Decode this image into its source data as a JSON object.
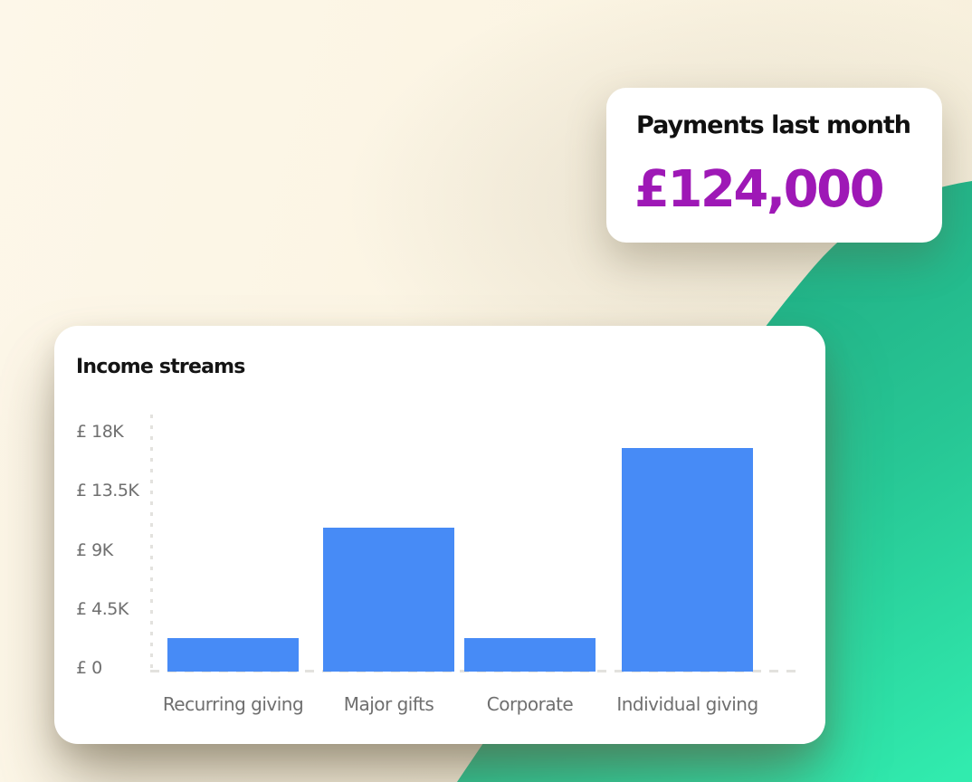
{
  "payments_card": {
    "title": "Payments last month",
    "amount": "£124,000"
  },
  "chart_card": {
    "title": "Income streams"
  },
  "chart_data": {
    "type": "bar",
    "title": "Income streams",
    "categories": [
      "Recurring giving",
      "Major gifts",
      "Corporate",
      "Individual giving"
    ],
    "values": [
      2500,
      10800,
      2500,
      16800
    ],
    "currency_prefix": "£",
    "ytick_labels": [
      "£ 18K",
      "£ 13.5K",
      "£ 9K",
      "£ 4.5K",
      "£ 0"
    ],
    "ytick_values": [
      18000,
      13500,
      9000,
      4500,
      0
    ],
    "ylim": [
      0,
      18000
    ],
    "xlabel": "",
    "ylabel": "",
    "grid": false,
    "legend": false,
    "bar_color": "#478BF6"
  },
  "colors": {
    "background_cream": "#FBF4E2",
    "accent_green_dark": "#1FA67F",
    "accent_green_light": "#31EBAE",
    "amount_purple": "#9E18B6",
    "bar_blue": "#478BF6",
    "label_gray": "#6F6F6F",
    "axis_dash_gray": "#E3E2DE"
  }
}
